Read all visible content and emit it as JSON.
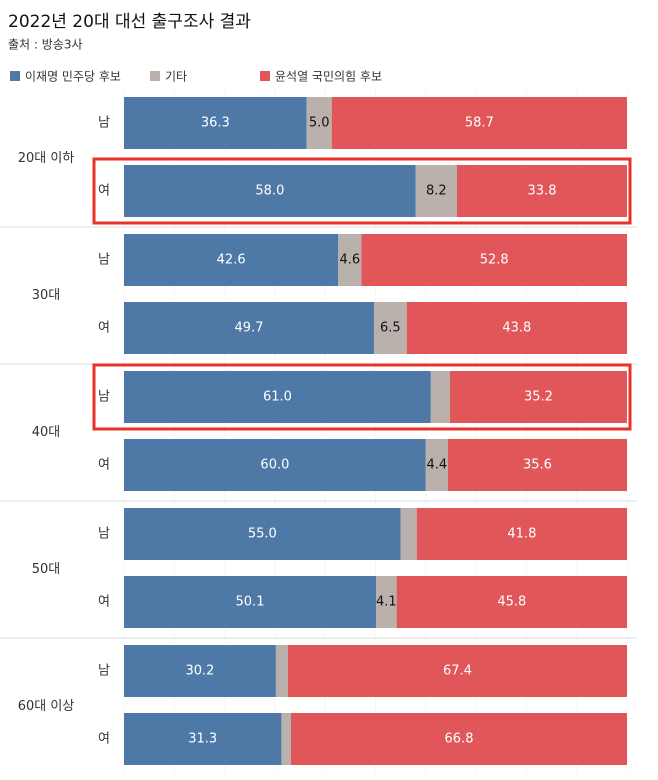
{
  "chart_data": {
    "type": "stacked-bar-horizontal",
    "title": "2022년 20대 대선 출구조사 결과",
    "subtitle": "출처 : 방송3사",
    "group_labels": [
      "20대 이하",
      "30대",
      "40대",
      "50대",
      "60대 이상"
    ],
    "categories": [
      "남",
      "여",
      "남",
      "여",
      "남",
      "여",
      "남",
      "여",
      "남",
      "여"
    ],
    "xlim": [
      0,
      100
    ],
    "series": [
      {
        "name": "이재명 민주당 후보",
        "color": "#4e79a7",
        "values": [
          36.3,
          58.0,
          42.6,
          49.7,
          61.0,
          60.0,
          55.0,
          50.1,
          30.2,
          31.3
        ],
        "value_labels": [
          "36.3",
          "58.0",
          "42.6",
          "49.7",
          "61.0",
          "60.0",
          "55.0",
          "50.1",
          "30.2",
          "31.3"
        ]
      },
      {
        "name": "기타",
        "color": "#bab0ac",
        "values": [
          5.0,
          8.2,
          4.6,
          6.5,
          3.8,
          4.4,
          3.2,
          4.1,
          2.4,
          1.9
        ],
        "value_labels": [
          "5.0",
          "8.2",
          "4.6",
          "6.5",
          null,
          "4.4",
          null,
          "4.1",
          null,
          null
        ]
      },
      {
        "name": "윤석열 국민의힘 후보",
        "color": "#e15759",
        "values": [
          58.7,
          33.8,
          52.8,
          43.8,
          35.2,
          35.6,
          41.8,
          45.8,
          67.4,
          66.8
        ],
        "value_labels": [
          "58.7",
          "33.8",
          "52.8",
          "43.8",
          "35.2",
          "35.6",
          "41.8",
          "45.8",
          "67.4",
          "66.8"
        ]
      }
    ],
    "highlight": [
      1,
      4
    ],
    "highlight_color": "#e8312a"
  }
}
